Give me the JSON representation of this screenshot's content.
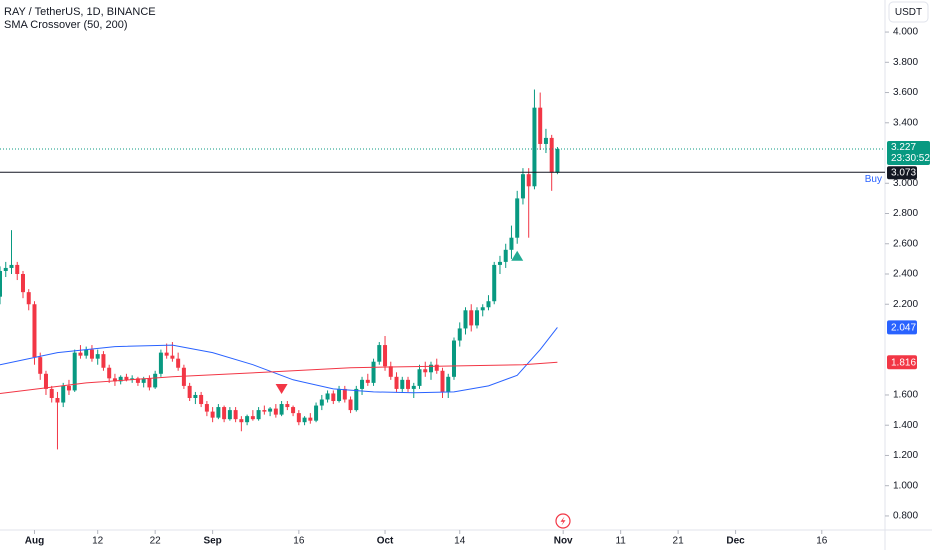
{
  "chart_data": {
    "type": "candlestick",
    "title": "RAY / TetherUS, 1D, BINANCE",
    "indicator": "SMA Crossover (50, 200)",
    "currency": "USDT",
    "up_color": "#089981",
    "down_color": "#f23645",
    "x": [
      "Jul 26",
      "Jul 27",
      "Jul 28",
      "Jul 29",
      "Jul 30",
      "Jul 31",
      "Aug 1",
      "Aug 2",
      "Aug 3",
      "Aug 4",
      "Aug 5",
      "Aug 6",
      "Aug 7",
      "Aug 8",
      "Aug 9",
      "Aug 10",
      "Aug 11",
      "Aug 12",
      "Aug 13",
      "Aug 14",
      "Aug 15",
      "Aug 16",
      "Aug 17",
      "Aug 18",
      "Aug 19",
      "Aug 20",
      "Aug 21",
      "Aug 22",
      "Aug 23",
      "Aug 24",
      "Aug 25",
      "Aug 26",
      "Aug 27",
      "Aug 28",
      "Aug 29",
      "Aug 30",
      "Aug 31",
      "Sep 1",
      "Sep 2",
      "Sep 3",
      "Sep 4",
      "Sep 5",
      "Sep 6",
      "Sep 7",
      "Sep 8",
      "Sep 9",
      "Sep 10",
      "Sep 11",
      "Sep 12",
      "Sep 13",
      "Sep 14",
      "Sep 15",
      "Sep 16",
      "Sep 17",
      "Sep 18",
      "Sep 19",
      "Sep 20",
      "Sep 21",
      "Sep 22",
      "Sep 23",
      "Sep 24",
      "Sep 25",
      "Sep 26",
      "Sep 27",
      "Sep 28",
      "Sep 29",
      "Sep 30",
      "Oct 1",
      "Oct 2",
      "Oct 3",
      "Oct 4",
      "Oct 5",
      "Oct 6",
      "Oct 7",
      "Oct 8",
      "Oct 9",
      "Oct 10",
      "Oct 11",
      "Oct 12",
      "Oct 13",
      "Oct 14",
      "Oct 15",
      "Oct 16",
      "Oct 17",
      "Oct 18",
      "Oct 19",
      "Oct 20",
      "Oct 21",
      "Oct 22",
      "Oct 23",
      "Oct 24",
      "Oct 25",
      "Oct 26",
      "Oct 27",
      "Oct 28",
      "Oct 29",
      "Oct 30",
      "Oct 31"
    ],
    "open": [
      2.25,
      2.42,
      2.44,
      2.46,
      2.4,
      2.28,
      2.2,
      1.85,
      1.74,
      1.64,
      1.58,
      1.55,
      1.66,
      1.63,
      1.88,
      1.86,
      1.9,
      1.84,
      1.87,
      1.78,
      1.71,
      1.69,
      1.72,
      1.7,
      1.71,
      1.68,
      1.71,
      1.65,
      1.74,
      1.88,
      1.86,
      1.84,
      1.78,
      1.66,
      1.58,
      1.6,
      1.54,
      1.49,
      1.45,
      1.52,
      1.44,
      1.5,
      1.44,
      1.42,
      1.46,
      1.44,
      1.5,
      1.49,
      1.51,
      1.47,
      1.54,
      1.52,
      1.48,
      1.42,
      1.45,
      1.43,
      1.53,
      1.57,
      1.61,
      1.56,
      1.64,
      1.57,
      1.5,
      1.64,
      1.7,
      1.68,
      1.82,
      1.93,
      1.79,
      1.72,
      1.64,
      1.7,
      1.64,
      1.66,
      1.77,
      1.75,
      1.8,
      1.76,
      1.62,
      1.72,
      1.96,
      2.04,
      2.16,
      2.06,
      2.16,
      2.18,
      2.22,
      2.46,
      2.48,
      2.56,
      2.64,
      2.9,
      3.06,
      2.98,
      3.5,
      3.26,
      3.3,
      3.07
    ],
    "high": [
      2.45,
      2.48,
      2.69,
      2.48,
      2.42,
      2.3,
      2.22,
      1.88,
      1.76,
      1.66,
      1.62,
      1.68,
      1.7,
      1.9,
      1.93,
      1.92,
      1.93,
      1.9,
      1.89,
      1.8,
      1.74,
      1.73,
      1.74,
      1.73,
      1.72,
      1.72,
      1.73,
      1.76,
      1.9,
      1.94,
      1.95,
      1.88,
      1.8,
      1.68,
      1.62,
      1.62,
      1.56,
      1.52,
      1.54,
      1.53,
      1.52,
      1.52,
      1.46,
      1.47,
      1.5,
      1.52,
      1.53,
      1.52,
      1.54,
      1.56,
      1.56,
      1.53,
      1.5,
      1.46,
      1.48,
      1.55,
      1.6,
      1.63,
      1.63,
      1.66,
      1.66,
      1.59,
      1.66,
      1.72,
      1.74,
      1.84,
      1.95,
      1.99,
      1.82,
      1.75,
      1.72,
      1.72,
      1.68,
      1.8,
      1.82,
      1.82,
      1.84,
      1.78,
      1.74,
      1.98,
      2.08,
      2.18,
      2.2,
      2.18,
      2.2,
      2.26,
      2.48,
      2.52,
      2.6,
      2.72,
      2.95,
      3.1,
      3.1,
      3.62,
      3.6,
      3.36,
      3.32,
      3.24
    ],
    "low": [
      2.2,
      2.38,
      2.4,
      2.36,
      2.24,
      2.16,
      1.8,
      1.7,
      1.6,
      1.55,
      1.24,
      1.52,
      1.6,
      1.62,
      1.84,
      1.84,
      1.82,
      1.8,
      1.76,
      1.68,
      1.66,
      1.67,
      1.69,
      1.68,
      1.66,
      1.65,
      1.63,
      1.64,
      1.72,
      1.84,
      1.82,
      1.76,
      1.64,
      1.56,
      1.54,
      1.52,
      1.46,
      1.42,
      1.44,
      1.42,
      1.43,
      1.42,
      1.36,
      1.4,
      1.43,
      1.43,
      1.47,
      1.46,
      1.45,
      1.46,
      1.5,
      1.46,
      1.4,
      1.4,
      1.41,
      1.42,
      1.5,
      1.55,
      1.54,
      1.55,
      1.55,
      1.48,
      1.49,
      1.6,
      1.66,
      1.66,
      1.8,
      1.76,
      1.7,
      1.62,
      1.62,
      1.62,
      1.58,
      1.64,
      1.72,
      1.7,
      1.74,
      1.58,
      1.58,
      1.7,
      1.92,
      2.0,
      2.02,
      2.04,
      2.12,
      2.16,
      2.2,
      2.4,
      2.44,
      2.5,
      2.6,
      2.86,
      2.64,
      2.96,
      3.22,
      3.2,
      2.95,
      3.06
    ],
    "close": [
      2.42,
      2.44,
      2.46,
      2.4,
      2.28,
      2.2,
      1.85,
      1.74,
      1.64,
      1.58,
      1.55,
      1.66,
      1.63,
      1.88,
      1.86,
      1.9,
      1.84,
      1.87,
      1.78,
      1.71,
      1.69,
      1.72,
      1.7,
      1.71,
      1.68,
      1.71,
      1.65,
      1.74,
      1.88,
      1.86,
      1.84,
      1.78,
      1.66,
      1.58,
      1.6,
      1.54,
      1.49,
      1.45,
      1.52,
      1.44,
      1.5,
      1.44,
      1.42,
      1.46,
      1.44,
      1.5,
      1.49,
      1.51,
      1.47,
      1.54,
      1.52,
      1.48,
      1.42,
      1.45,
      1.43,
      1.53,
      1.57,
      1.61,
      1.56,
      1.64,
      1.57,
      1.5,
      1.64,
      1.7,
      1.68,
      1.82,
      1.93,
      1.79,
      1.72,
      1.64,
      1.7,
      1.64,
      1.66,
      1.77,
      1.75,
      1.8,
      1.76,
      1.62,
      1.72,
      1.96,
      2.04,
      2.16,
      2.06,
      2.16,
      2.18,
      2.22,
      2.46,
      2.48,
      2.56,
      2.64,
      2.9,
      3.06,
      2.98,
      3.5,
      3.26,
      3.3,
      3.07,
      3.227
    ],
    "countdown": "23:30:52",
    "lines": [
      {
        "color": "#2962ff",
        "x": [
          "Jul 26",
          "Aug 5",
          "Aug 15",
          "Aug 25",
          "Sep 1",
          "Sep 8",
          "Sep 15",
          "Sep 22",
          "Sep 29",
          "Oct 6",
          "Oct 13",
          "Oct 19",
          "Oct 24",
          "Oct 28",
          "Oct 31"
        ],
        "values": [
          1.8,
          1.88,
          1.92,
          1.93,
          1.88,
          1.8,
          1.7,
          1.64,
          1.62,
          1.615,
          1.62,
          1.66,
          1.73,
          1.9,
          2.047
        ]
      },
      {
        "color": "#f23645",
        "x": [
          "Jul 26",
          "Aug 10",
          "Aug 25",
          "Sep 10",
          "Sep 25",
          "Oct 10",
          "Oct 25",
          "Oct 31"
        ],
        "values": [
          1.61,
          1.68,
          1.72,
          1.75,
          1.78,
          1.79,
          1.8,
          1.816
        ]
      }
    ],
    "order": {
      "price": 3.073,
      "text": "Buy"
    },
    "signals": [
      {
        "x": "Sep 13",
        "direction": "down",
        "color": "#f23645"
      },
      {
        "x": "Oct 24",
        "direction": "up",
        "color": "#22ab94"
      }
    ],
    "xlim": [
      "Jul 26",
      "Dec 27"
    ],
    "xticks": [
      {
        "value": "Aug 1",
        "label": "Aug"
      },
      {
        "value": "Aug 12",
        "label": "12"
      },
      {
        "value": "Aug 22",
        "label": "22"
      },
      {
        "value": "Sep 1",
        "label": "Sep"
      },
      {
        "value": "Sep 16",
        "label": "16"
      },
      {
        "value": "Oct 1",
        "label": "Oct"
      },
      {
        "value": "Oct 14",
        "label": "14"
      },
      {
        "value": "Nov 1",
        "label": "Nov"
      },
      {
        "value": "Nov 11",
        "label": "11"
      },
      {
        "value": "Nov 21",
        "label": "21"
      },
      {
        "value": "Dec 1",
        "label": "Dec"
      },
      {
        "value": "Dec 16",
        "label": "16"
      }
    ],
    "ylim": [
      0.707,
      4.212
    ],
    "yticks": [
      {
        "value": 4,
        "label": "4.000"
      },
      {
        "value": 3.8,
        "label": "3.800"
      },
      {
        "value": 3.6,
        "label": "3.600"
      },
      {
        "value": 3.4,
        "label": "3.400"
      },
      {
        "value": 3,
        "label": "3.000"
      },
      {
        "value": 2.8,
        "label": "2.800"
      },
      {
        "value": 2.6,
        "label": "2.600"
      },
      {
        "value": 2.4,
        "label": "2.400"
      },
      {
        "value": 2.2,
        "label": "2.200"
      },
      {
        "value": 1.6,
        "label": "1.600"
      },
      {
        "value": 1.4,
        "label": "1.400"
      },
      {
        "value": 1.2,
        "label": "1.200"
      },
      {
        "value": 1,
        "label": "1.000"
      },
      {
        "value": 0.8,
        "label": "0.800"
      }
    ]
  }
}
